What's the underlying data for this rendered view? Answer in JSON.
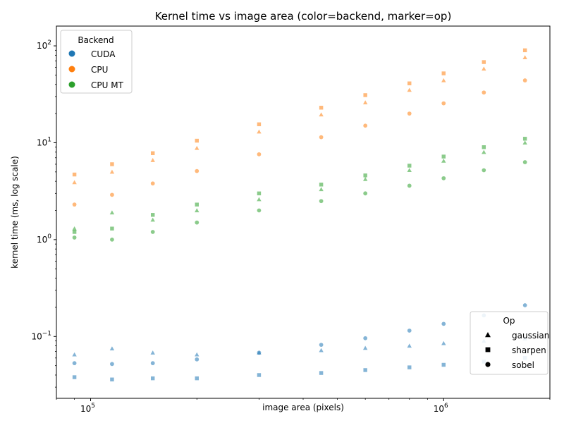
{
  "chart_data": {
    "type": "scatter",
    "title": "Kernel time vs image area (color=backend, marker=op)",
    "xlabel": "image area (pixels)",
    "ylabel": "kernel time (ms, log scale)",
    "xscale": "log",
    "yscale": "log",
    "xlim": [
      80000,
      2000000
    ],
    "ylim": [
      0.023,
      160
    ],
    "x_ticks": [
      {
        "value": 100000,
        "base": "10",
        "exp": "5"
      },
      {
        "value": 1000000,
        "base": "10",
        "exp": "6"
      }
    ],
    "y_ticks": [
      {
        "value": 0.1,
        "base": "10",
        "exp": "−1"
      },
      {
        "value": 1,
        "base": "10",
        "exp": "0"
      },
      {
        "value": 10,
        "base": "10",
        "exp": "1"
      },
      {
        "value": 100,
        "base": "10",
        "exp": "2"
      }
    ],
    "grid": false,
    "legend_backend": {
      "title": "Backend",
      "placement": "top-left",
      "entries": [
        {
          "label": "CUDA",
          "color": "#1f77b4"
        },
        {
          "label": "CPU",
          "color": "#ff7f0e"
        },
        {
          "label": "CPU MT",
          "color": "#2ca02c"
        }
      ]
    },
    "legend_op": {
      "title": "Op",
      "placement": "bottom-right",
      "entries": [
        {
          "label": "gaussian",
          "marker": "triangle"
        },
        {
          "label": "sharpen",
          "marker": "square"
        },
        {
          "label": "sobel",
          "marker": "circle"
        }
      ]
    },
    "series": [
      {
        "backend": "CUDA",
        "op": "gaussian",
        "color": "#1f77b4",
        "marker": "triangle",
        "x": [
          90000,
          115000,
          150000,
          200000,
          300000,
          450000,
          600000,
          800000,
          1000000,
          1300000,
          1700000
        ],
        "y": [
          0.065,
          0.075,
          0.068,
          0.065,
          0.068,
          0.072,
          0.076,
          0.08,
          0.085,
          0.09,
          0.095
        ]
      },
      {
        "backend": "CUDA",
        "op": "sharpen",
        "color": "#1f77b4",
        "marker": "square",
        "x": [
          90000,
          115000,
          150000,
          200000,
          300000,
          450000,
          600000,
          800000,
          1000000,
          1300000,
          1700000
        ],
        "y": [
          0.038,
          0.036,
          0.037,
          0.037,
          0.04,
          0.042,
          0.045,
          0.048,
          0.051,
          0.055,
          0.06
        ]
      },
      {
        "backend": "CUDA",
        "op": "sobel",
        "color": "#1f77b4",
        "marker": "circle",
        "x": [
          90000,
          115000,
          150000,
          200000,
          300000,
          450000,
          600000,
          800000,
          1000000,
          1300000,
          1700000
        ],
        "y": [
          0.053,
          0.052,
          0.053,
          0.058,
          0.068,
          0.082,
          0.096,
          0.115,
          0.135,
          0.165,
          0.21
        ]
      },
      {
        "backend": "CPU",
        "op": "gaussian",
        "color": "#ff7f0e",
        "marker": "triangle",
        "x": [
          90000,
          115000,
          150000,
          200000,
          300000,
          450000,
          600000,
          800000,
          1000000,
          1300000,
          1700000
        ],
        "y": [
          3.9,
          5.0,
          6.6,
          8.8,
          13.0,
          19.5,
          26.0,
          35.0,
          44.0,
          58.0,
          76.0
        ]
      },
      {
        "backend": "CPU",
        "op": "sharpen",
        "color": "#ff7f0e",
        "marker": "square",
        "x": [
          90000,
          115000,
          150000,
          200000,
          300000,
          450000,
          600000,
          800000,
          1000000,
          1300000,
          1700000
        ],
        "y": [
          4.7,
          6.0,
          7.8,
          10.5,
          15.5,
          23.0,
          31.0,
          41.0,
          52.0,
          68.0,
          90.0
        ]
      },
      {
        "backend": "CPU",
        "op": "sobel",
        "color": "#ff7f0e",
        "marker": "circle",
        "x": [
          90000,
          115000,
          150000,
          200000,
          300000,
          450000,
          600000,
          800000,
          1000000,
          1300000,
          1700000
        ],
        "y": [
          2.3,
          2.9,
          3.8,
          5.1,
          7.6,
          11.4,
          15.0,
          20.0,
          25.5,
          33.0,
          44.0
        ]
      },
      {
        "backend": "CPU MT",
        "op": "gaussian",
        "color": "#2ca02c",
        "marker": "triangle",
        "x": [
          90000,
          115000,
          150000,
          200000,
          300000,
          450000,
          600000,
          800000,
          1000000,
          1300000,
          1700000
        ],
        "y": [
          1.3,
          1.9,
          1.6,
          2.0,
          2.6,
          3.3,
          4.2,
          5.2,
          6.5,
          8.0,
          10.0
        ]
      },
      {
        "backend": "CPU MT",
        "op": "sharpen",
        "color": "#2ca02c",
        "marker": "square",
        "x": [
          90000,
          115000,
          150000,
          200000,
          300000,
          450000,
          600000,
          800000,
          1000000,
          1300000,
          1700000
        ],
        "y": [
          1.2,
          1.3,
          1.8,
          2.3,
          3.0,
          3.7,
          4.6,
          5.8,
          7.2,
          9.0,
          11.0
        ]
      },
      {
        "backend": "CPU MT",
        "op": "sobel",
        "color": "#2ca02c",
        "marker": "circle",
        "x": [
          90000,
          115000,
          150000,
          200000,
          300000,
          450000,
          600000,
          800000,
          1000000,
          1300000,
          1700000
        ],
        "y": [
          1.05,
          1.0,
          1.2,
          1.5,
          2.0,
          2.5,
          3.0,
          3.6,
          4.3,
          5.2,
          6.3
        ]
      }
    ]
  }
}
